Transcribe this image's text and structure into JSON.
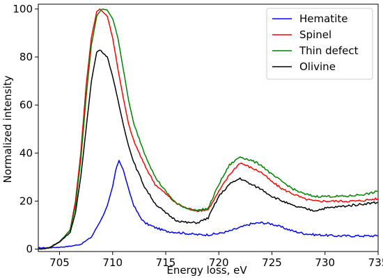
{
  "chart_data": {
    "type": "line",
    "title": "",
    "xlabel": "Energy loss, eV",
    "ylabel": "Normalized intensity",
    "xlim": [
      703,
      735
    ],
    "ylim": [
      -1,
      102
    ],
    "xticks": [
      705,
      710,
      715,
      720,
      725,
      730,
      735
    ],
    "yticks": [
      0,
      20,
      40,
      60,
      80,
      100
    ],
    "grid": false,
    "legend": "top-right",
    "series": [
      {
        "name": "Hematite",
        "color": "#0000ff",
        "points": [
          [
            703,
            0.5
          ],
          [
            704,
            0.6
          ],
          [
            705,
            0.8
          ],
          [
            706,
            1.2
          ],
          [
            707,
            2
          ],
          [
            708,
            5
          ],
          [
            709,
            13
          ],
          [
            709.5,
            18
          ],
          [
            710,
            26
          ],
          [
            710.3,
            33
          ],
          [
            710.6,
            37
          ],
          [
            711,
            33
          ],
          [
            711.5,
            25
          ],
          [
            712,
            18
          ],
          [
            712.5,
            14
          ],
          [
            713,
            11
          ],
          [
            714,
            9
          ],
          [
            715,
            7.5
          ],
          [
            716,
            7
          ],
          [
            717,
            6.5
          ],
          [
            718,
            6
          ],
          [
            719,
            6
          ],
          [
            720,
            6.5
          ],
          [
            721,
            7.5
          ],
          [
            722,
            9
          ],
          [
            723,
            10.5
          ],
          [
            724,
            11
          ],
          [
            725,
            10.5
          ],
          [
            726,
            9
          ],
          [
            727,
            7.5
          ],
          [
            728,
            6.5
          ],
          [
            729,
            6
          ],
          [
            730,
            5.8
          ],
          [
            731,
            5.5
          ],
          [
            732,
            5.5
          ],
          [
            733,
            5.5
          ],
          [
            734,
            5.5
          ],
          [
            735,
            5.5
          ]
        ]
      },
      {
        "name": "Spinel",
        "color": "#ff0000",
        "points": [
          [
            703,
            0
          ],
          [
            704,
            0.5
          ],
          [
            705,
            3
          ],
          [
            706,
            8
          ],
          [
            706.5,
            20
          ],
          [
            707,
            40
          ],
          [
            707.5,
            68
          ],
          [
            708,
            88
          ],
          [
            708.5,
            99
          ],
          [
            708.8,
            100
          ],
          [
            709.5,
            97
          ],
          [
            710,
            88
          ],
          [
            710.5,
            75
          ],
          [
            711,
            63
          ],
          [
            711.5,
            52
          ],
          [
            712,
            45
          ],
          [
            713,
            35
          ],
          [
            714,
            27
          ],
          [
            715,
            23
          ],
          [
            716,
            19
          ],
          [
            717,
            17
          ],
          [
            718,
            16
          ],
          [
            719,
            16.5
          ],
          [
            720,
            24
          ],
          [
            721,
            31
          ],
          [
            722,
            36
          ],
          [
            723,
            34
          ],
          [
            724,
            32
          ],
          [
            725,
            28
          ],
          [
            726,
            25
          ],
          [
            727,
            23
          ],
          [
            728,
            21
          ],
          [
            729,
            20
          ],
          [
            730,
            20
          ],
          [
            731,
            20
          ],
          [
            732,
            20
          ],
          [
            733,
            20
          ],
          [
            734,
            20.5
          ],
          [
            735,
            21
          ]
        ]
      },
      {
        "name": "Thin defect",
        "color": "#008000",
        "points": [
          [
            703,
            0
          ],
          [
            704,
            0.5
          ],
          [
            705,
            3
          ],
          [
            706,
            8
          ],
          [
            706.5,
            18
          ],
          [
            707,
            37
          ],
          [
            707.5,
            63
          ],
          [
            708,
            85
          ],
          [
            708.5,
            97
          ],
          [
            709,
            100
          ],
          [
            709.5,
            99.5
          ],
          [
            710,
            96
          ],
          [
            710.5,
            88
          ],
          [
            711,
            75
          ],
          [
            711.5,
            62
          ],
          [
            712,
            52
          ],
          [
            713,
            40
          ],
          [
            714,
            30
          ],
          [
            715,
            24
          ],
          [
            716,
            19
          ],
          [
            717,
            17
          ],
          [
            718,
            16
          ],
          [
            719,
            17
          ],
          [
            720,
            27
          ],
          [
            721,
            35
          ],
          [
            722,
            38.5
          ],
          [
            723,
            37
          ],
          [
            724,
            35
          ],
          [
            725,
            31
          ],
          [
            726,
            28
          ],
          [
            727,
            25
          ],
          [
            728,
            23
          ],
          [
            729,
            22
          ],
          [
            730,
            22
          ],
          [
            731,
            22
          ],
          [
            732,
            22
          ],
          [
            733,
            22.5
          ],
          [
            734,
            23
          ],
          [
            735,
            24
          ]
        ]
      },
      {
        "name": "Olivine",
        "color": "#000000",
        "points": [
          [
            703,
            0
          ],
          [
            704,
            0.5
          ],
          [
            705,
            3
          ],
          [
            706,
            7
          ],
          [
            706.5,
            15
          ],
          [
            707,
            30
          ],
          [
            707.5,
            50
          ],
          [
            708,
            70
          ],
          [
            708.5,
            82
          ],
          [
            708.8,
            83
          ],
          [
            709.5,
            80
          ],
          [
            710,
            72
          ],
          [
            710.5,
            62
          ],
          [
            711,
            52
          ],
          [
            711.5,
            43
          ],
          [
            712,
            36
          ],
          [
            713,
            26
          ],
          [
            714,
            19
          ],
          [
            715,
            15
          ],
          [
            716,
            12
          ],
          [
            717,
            11
          ],
          [
            718,
            11
          ],
          [
            719,
            13
          ],
          [
            720,
            22
          ],
          [
            721,
            27
          ],
          [
            722,
            29.5
          ],
          [
            723,
            27
          ],
          [
            724,
            25
          ],
          [
            725,
            22
          ],
          [
            726,
            20
          ],
          [
            727,
            18
          ],
          [
            728,
            17
          ],
          [
            729,
            16
          ],
          [
            730,
            17
          ],
          [
            731,
            17.5
          ],
          [
            732,
            18
          ],
          [
            733,
            18.5
          ],
          [
            734,
            19
          ],
          [
            735,
            19.5
          ]
        ]
      }
    ]
  }
}
